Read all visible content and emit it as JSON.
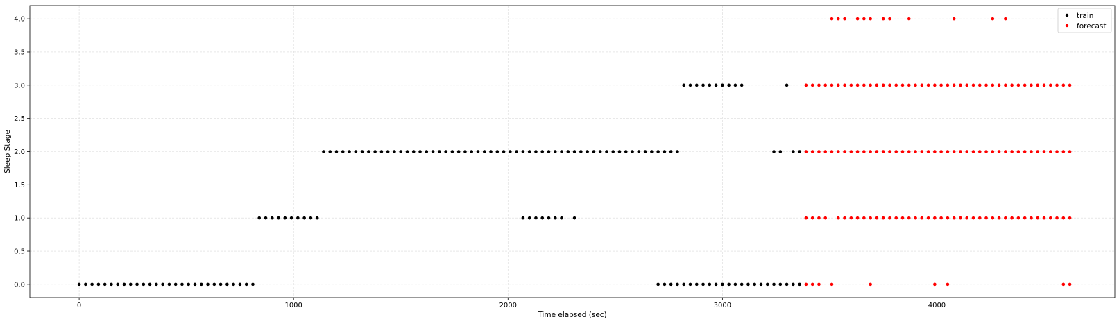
{
  "chart_data": {
    "type": "scatter",
    "title": "",
    "xlabel": "Time elapsed (sec)",
    "ylabel": "Sleep Stage",
    "xlim": [
      -230,
      4830
    ],
    "ylim": [
      -0.2,
      4.2
    ],
    "x_ticks": [
      0,
      1000,
      2000,
      3000,
      4000
    ],
    "y_ticks": [
      0.0,
      0.5,
      1.0,
      1.5,
      2.0,
      2.5,
      3.0,
      3.5,
      4.0
    ],
    "x_tick_labels": [
      "0",
      "1000",
      "2000",
      "3000",
      "4000"
    ],
    "y_tick_labels": [
      "0.0",
      "0.5",
      "1.0",
      "1.5",
      "2.0",
      "2.5",
      "3.0",
      "3.5",
      "4.0"
    ],
    "grid": true,
    "legend_position": "top-right",
    "series": [
      {
        "name": "train",
        "color": "#000000",
        "runs": [
          {
            "y": 0,
            "x_start": 0,
            "x_end": 810,
            "step": 30
          },
          {
            "y": 1,
            "x_start": 840,
            "x_end": 1110,
            "step": 30
          },
          {
            "y": 2,
            "x_start": 1140,
            "x_end": 2790,
            "step": 30
          },
          {
            "y": 1,
            "x_start": 2070,
            "x_end": 2250,
            "step": 30
          },
          {
            "y": 0,
            "x_start": 2700,
            "x_end": 3360,
            "step": 30
          },
          {
            "y": 3,
            "x_start": 2820,
            "x_end": 3090,
            "step": 30
          }
        ],
        "points": [
          {
            "x": 2310,
            "y": 1
          },
          {
            "x": 3300,
            "y": 3
          },
          {
            "x": 3240,
            "y": 2
          },
          {
            "x": 3270,
            "y": 2
          },
          {
            "x": 3330,
            "y": 2
          },
          {
            "x": 3360,
            "y": 2
          }
        ]
      },
      {
        "name": "forecast",
        "color": "#ff0000",
        "runs": [
          {
            "y": 3,
            "x_start": 3390,
            "x_end": 4620,
            "step": 30
          },
          {
            "y": 2,
            "x_start": 3390,
            "x_end": 4620,
            "step": 30
          },
          {
            "y": 1,
            "x_start": 3720,
            "x_end": 4620,
            "step": 30
          }
        ],
        "points": [
          {
            "x": 3390,
            "y": 1
          },
          {
            "x": 3420,
            "y": 1
          },
          {
            "x": 3450,
            "y": 1
          },
          {
            "x": 3480,
            "y": 1
          },
          {
            "x": 3540,
            "y": 1
          },
          {
            "x": 3570,
            "y": 1
          },
          {
            "x": 3600,
            "y": 1
          },
          {
            "x": 3630,
            "y": 1
          },
          {
            "x": 3660,
            "y": 1
          },
          {
            "x": 3690,
            "y": 1
          },
          {
            "x": 3390,
            "y": 0
          },
          {
            "x": 3420,
            "y": 0
          },
          {
            "x": 3450,
            "y": 0
          },
          {
            "x": 3510,
            "y": 0
          },
          {
            "x": 3690,
            "y": 0
          },
          {
            "x": 3990,
            "y": 0
          },
          {
            "x": 4050,
            "y": 0
          },
          {
            "x": 4590,
            "y": 0
          },
          {
            "x": 4620,
            "y": 0
          },
          {
            "x": 3510,
            "y": 4
          },
          {
            "x": 3540,
            "y": 4
          },
          {
            "x": 3570,
            "y": 4
          },
          {
            "x": 3630,
            "y": 4
          },
          {
            "x": 3660,
            "y": 4
          },
          {
            "x": 3690,
            "y": 4
          },
          {
            "x": 3750,
            "y": 4
          },
          {
            "x": 3780,
            "y": 4
          },
          {
            "x": 3870,
            "y": 4
          },
          {
            "x": 4080,
            "y": 4
          },
          {
            "x": 4260,
            "y": 4
          },
          {
            "x": 4320,
            "y": 4
          }
        ]
      }
    ]
  }
}
